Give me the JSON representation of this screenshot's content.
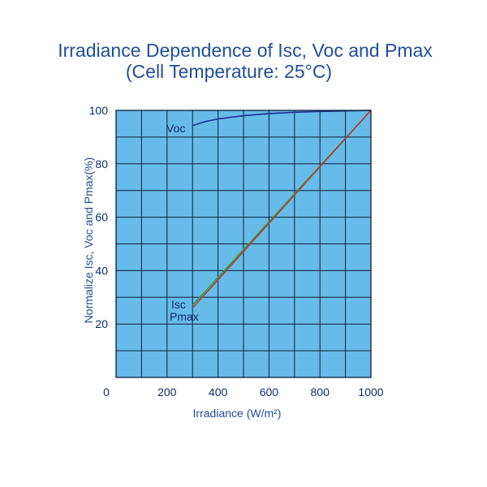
{
  "chart_data": {
    "type": "line",
    "title": "Irradiance Dependence of Isc, Voc and Pmax",
    "subtitle": "(Cell Temperature: 25°C)",
    "xlabel": "Irradiance (W/m²)",
    "ylabel": "Normalize  Isc, Voc and  Pmax(%)",
    "xlim": [
      0,
      1000
    ],
    "ylim": [
      0,
      100
    ],
    "x_ticks": [
      0,
      200,
      400,
      600,
      800,
      1000
    ],
    "y_ticks": [
      20,
      40,
      60,
      80,
      100
    ],
    "grid": true,
    "colors": {
      "plot_background": "#66bbe8",
      "grid": "#0d1f3a",
      "title": "#1f4e9a",
      "ticks": "#0d2d6b"
    },
    "series": [
      {
        "name": "Voc",
        "label_text": "Voc",
        "color": "#1a2f8c",
        "x": [
          300,
          350,
          400,
          500,
          600,
          700,
          800,
          900,
          1000
        ],
        "y": [
          94.3,
          95.8,
          96.8,
          98.0,
          98.8,
          99.3,
          99.6,
          99.8,
          100
        ]
      },
      {
        "name": "Isc",
        "label_text": "Isc",
        "color": "#2e9a44",
        "x": [
          300,
          1000
        ],
        "y": [
          27,
          100
        ]
      },
      {
        "name": "Pmax",
        "label_text": "Pmax",
        "color": "#c0392b",
        "x": [
          300,
          1000
        ],
        "y": [
          26,
          100
        ]
      }
    ]
  }
}
